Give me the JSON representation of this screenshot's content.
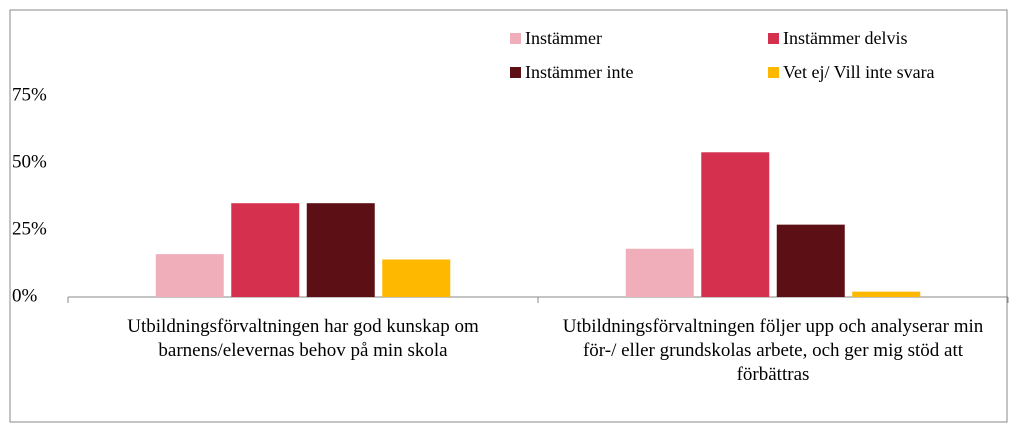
{
  "chart_data": {
    "type": "bar",
    "categories": [
      "Utbildningsförvaltningen har god kunskap om barnens/elevernas behov på min skola",
      "Utbildningsförvaltningen följer upp och analyserar min för-/ eller grundskolas arbete, och ger mig stöd att förbättras"
    ],
    "series": [
      {
        "name": "Instämmer",
        "color": "#f0aebb",
        "values": [
          16,
          18
        ]
      },
      {
        "name": "Instämmer delvis",
        "color": "#d6304f",
        "values": [
          35,
          54
        ]
      },
      {
        "name": "Instämmer inte",
        "color": "#5c1015",
        "values": [
          35,
          27
        ]
      },
      {
        "name": "Vet ej/ Vill inte svara",
        "color": "#ffb800",
        "values": [
          14,
          2
        ]
      }
    ],
    "ylim": [
      0,
      75
    ],
    "yticks": [
      {
        "value": 0,
        "label": "0%"
      },
      {
        "value": 25,
        "label": "25%"
      },
      {
        "value": 50,
        "label": "50%"
      },
      {
        "value": 75,
        "label": "75%"
      }
    ],
    "grid": false
  }
}
